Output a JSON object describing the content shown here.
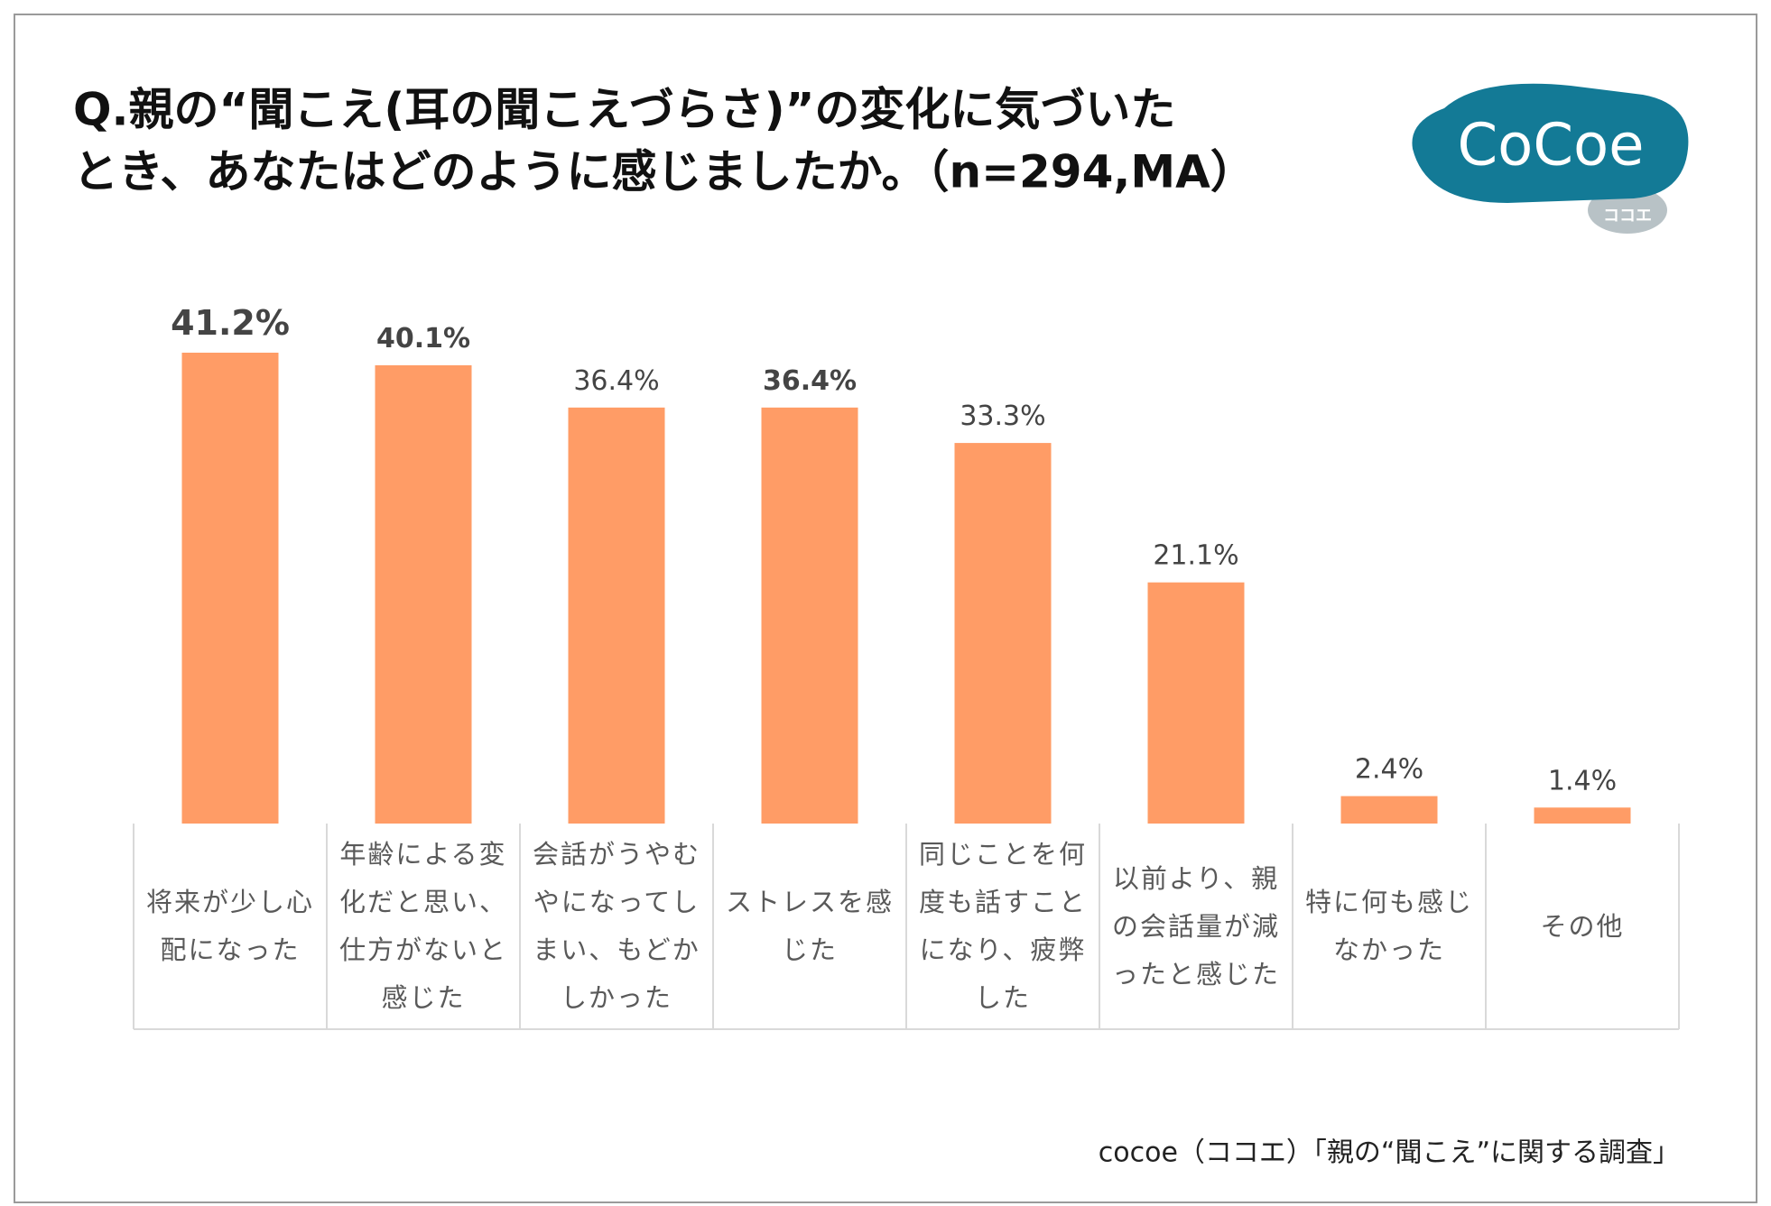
{
  "chart_data": {
    "type": "bar",
    "title": [
      "Q.親の“聞こえ(耳の聞こえづらさ)”の変化に気づいた",
      "とき、あなたはどのように感じましたか。（n=294,MA）"
    ],
    "logo": "CoCoe",
    "logo_sub": "ココエ",
    "categories": [
      "将来が少し心配になった",
      "年齢による変化だと思い、仕方がないと感じた",
      "会話がうやむやになってしまい、もどかしかった",
      "ストレスを感じた",
      "同じことを何度も話すことになり、疲弊した",
      "以前より、親の会話量が減ったと感じた",
      "特に何も感じなかった",
      "その他"
    ],
    "values": [
      41.2,
      40.1,
      36.4,
      36.4,
      33.3,
      21.1,
      2.4,
      1.4
    ],
    "value_labels": [
      "41.2%",
      "40.1%",
      "36.4%",
      "36.4%",
      "33.3%",
      "21.1%",
      "2.4%",
      "1.4%"
    ],
    "color": "#ff9c66",
    "source": "cocoe（ココエ）「親の“聞こえ”に関する調査」"
  }
}
